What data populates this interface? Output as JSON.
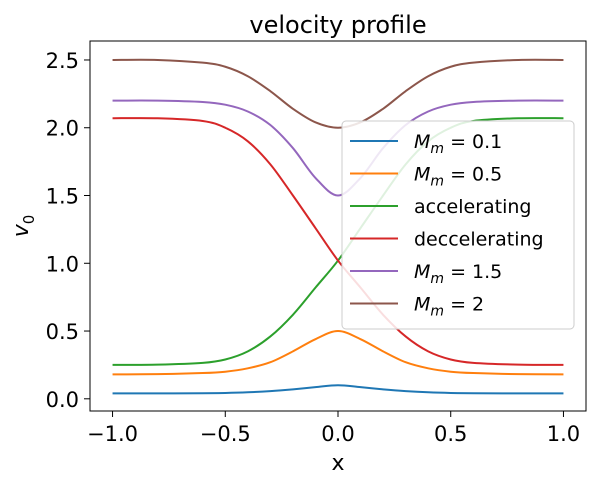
{
  "chart_data": {
    "type": "line",
    "title": "velocity profile",
    "xlabel": "x",
    "ylabel": "v",
    "ylabel_sub": "0",
    "xlim": [
      -1.1,
      1.1
    ],
    "ylim": [
      -0.09,
      2.64
    ],
    "grid": false,
    "legend_position": "center-right",
    "xticks": [
      -1.0,
      -0.5,
      0.0,
      0.5,
      1.0
    ],
    "xtick_labels": [
      "−1.0",
      "−0.5",
      "0.0",
      "0.5",
      "1.0"
    ],
    "yticks": [
      0.0,
      0.5,
      1.0,
      1.5,
      2.0,
      2.5
    ],
    "ytick_labels": [
      "0.0",
      "0.5",
      "1.0",
      "1.5",
      "2.0",
      "2.5"
    ],
    "series": [
      {
        "name": "M_m = 0.1",
        "label_main": "M",
        "label_sub": "m",
        "label_rest": " = 0.1",
        "color": "#1f77b4",
        "x": [
          -1.0,
          -0.8,
          -0.6,
          -0.5,
          -0.4,
          -0.3,
          -0.2,
          -0.1,
          0.0,
          0.1,
          0.2,
          0.3,
          0.4,
          0.5,
          0.6,
          0.8,
          1.0
        ],
        "y": [
          0.04,
          0.04,
          0.041,
          0.043,
          0.048,
          0.057,
          0.07,
          0.086,
          0.1,
          0.086,
          0.07,
          0.057,
          0.048,
          0.043,
          0.041,
          0.04,
          0.04
        ]
      },
      {
        "name": "M_m = 0.5",
        "label_main": "M",
        "label_sub": "m",
        "label_rest": " = 0.5",
        "color": "#ff7f0e",
        "x": [
          -1.0,
          -0.8,
          -0.6,
          -0.5,
          -0.4,
          -0.3,
          -0.2,
          -0.1,
          0.0,
          0.1,
          0.2,
          0.3,
          0.4,
          0.5,
          0.6,
          0.8,
          1.0
        ],
        "y": [
          0.18,
          0.182,
          0.19,
          0.2,
          0.225,
          0.27,
          0.35,
          0.44,
          0.5,
          0.44,
          0.35,
          0.27,
          0.225,
          0.2,
          0.19,
          0.182,
          0.18
        ]
      },
      {
        "name": "accelerating",
        "label_main": "accelerating",
        "label_sub": "",
        "label_rest": "",
        "color": "#2ca02c",
        "x": [
          -1.0,
          -0.8,
          -0.6,
          -0.5,
          -0.4,
          -0.3,
          -0.2,
          -0.1,
          0.0,
          0.1,
          0.2,
          0.3,
          0.4,
          0.5,
          0.6,
          0.8,
          1.0
        ],
        "y": [
          0.25,
          0.252,
          0.265,
          0.29,
          0.35,
          0.46,
          0.62,
          0.82,
          1.02,
          1.26,
          1.5,
          1.73,
          1.9,
          2.0,
          2.05,
          2.07,
          2.07
        ]
      },
      {
        "name": "deccelerating",
        "label_main": "deccelerating",
        "label_sub": "",
        "label_rest": "",
        "color": "#d62728",
        "x": [
          -1.0,
          -0.8,
          -0.6,
          -0.5,
          -0.4,
          -0.3,
          -0.2,
          -0.1,
          0.0,
          0.1,
          0.2,
          0.3,
          0.4,
          0.5,
          0.6,
          0.8,
          1.0
        ],
        "y": [
          2.07,
          2.07,
          2.05,
          2.0,
          1.9,
          1.73,
          1.5,
          1.26,
          1.02,
          0.82,
          0.62,
          0.46,
          0.35,
          0.29,
          0.265,
          0.252,
          0.25
        ]
      },
      {
        "name": "M_m = 1.5",
        "label_main": "M",
        "label_sub": "m",
        "label_rest": " = 1.5",
        "color": "#9467bd",
        "x": [
          -1.0,
          -0.8,
          -0.6,
          -0.5,
          -0.4,
          -0.3,
          -0.2,
          -0.1,
          0.0,
          0.1,
          0.2,
          0.3,
          0.4,
          0.5,
          0.6,
          0.8,
          1.0
        ],
        "y": [
          2.2,
          2.2,
          2.19,
          2.17,
          2.12,
          2.02,
          1.85,
          1.63,
          1.5,
          1.63,
          1.85,
          2.02,
          2.12,
          2.17,
          2.19,
          2.2,
          2.2
        ]
      },
      {
        "name": "M_m = 2",
        "label_main": "M",
        "label_sub": "m",
        "label_rest": " = 2",
        "color": "#8c564b",
        "x": [
          -1.0,
          -0.8,
          -0.6,
          -0.5,
          -0.4,
          -0.3,
          -0.2,
          -0.1,
          0.0,
          0.1,
          0.2,
          0.3,
          0.4,
          0.5,
          0.6,
          0.8,
          1.0
        ],
        "y": [
          2.5,
          2.5,
          2.48,
          2.45,
          2.38,
          2.27,
          2.14,
          2.04,
          2.0,
          2.04,
          2.14,
          2.27,
          2.38,
          2.45,
          2.48,
          2.5,
          2.5
        ]
      }
    ]
  }
}
